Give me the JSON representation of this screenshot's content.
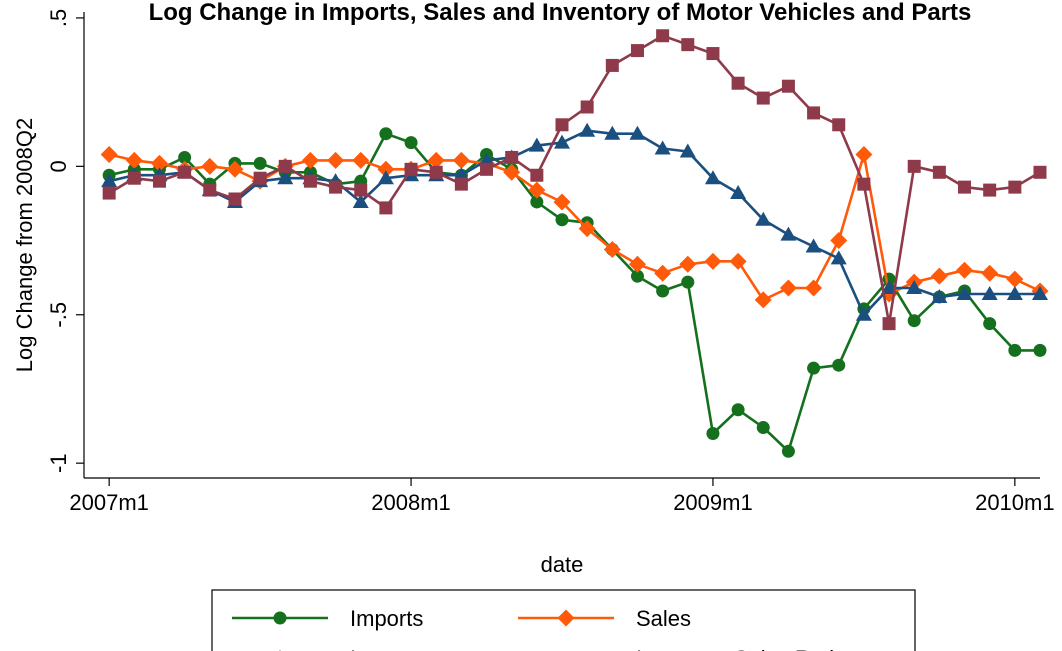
{
  "chart_data": {
    "type": "line",
    "title": "Log Change in Imports, Sales and Inventory of Motor Vehicles and Parts",
    "xlabel": "date",
    "ylabel": "Log Change from 2008Q2",
    "xlim": [
      "2006m12",
      "2010m2"
    ],
    "ylim": [
      -1.05,
      0.52
    ],
    "x_ticks": [
      {
        "value": "2007m1",
        "label": "2007m1"
      },
      {
        "value": "2008m1",
        "label": "2008m1"
      },
      {
        "value": "2009m1",
        "label": "2009m1"
      },
      {
        "value": "2010m1",
        "label": "2010m1"
      }
    ],
    "y_ticks": [
      {
        "value": 0.5,
        "label": ".5"
      },
      {
        "value": 0,
        "label": "0"
      },
      {
        "value": -0.5,
        "label": "-.5"
      },
      {
        "value": -1,
        "label": "-1"
      }
    ],
    "grid": false,
    "legend_position": "bottom",
    "x": [
      "2007m1",
      "2007m2",
      "2007m3",
      "2007m4",
      "2007m5",
      "2007m6",
      "2007m7",
      "2007m8",
      "2007m9",
      "2007m10",
      "2007m11",
      "2007m12",
      "2008m1",
      "2008m2",
      "2008m3",
      "2008m4",
      "2008m5",
      "2008m6",
      "2008m7",
      "2008m8",
      "2008m9",
      "2008m10",
      "2008m11",
      "2008m12",
      "2009m1",
      "2009m2",
      "2009m3",
      "2009m4",
      "2009m5",
      "2009m6",
      "2009m7",
      "2009m8",
      "2009m9",
      "2009m10",
      "2009m11",
      "2009m12",
      "2010m1",
      "2010m2"
    ],
    "series": [
      {
        "name": "Imports",
        "color": "#15701e",
        "marker": "circle",
        "values": [
          -0.03,
          -0.01,
          -0.01,
          0.03,
          -0.06,
          0.01,
          0.01,
          -0.02,
          -0.02,
          -0.06,
          -0.05,
          0.11,
          0.08,
          -0.02,
          -0.03,
          0.04,
          -0.01,
          -0.12,
          -0.18,
          -0.19,
          -0.28,
          -0.37,
          -0.42,
          -0.39,
          -0.9,
          -0.82,
          -0.88,
          -0.96,
          -0.68,
          -0.67,
          -0.48,
          -0.38,
          -0.52,
          -0.44,
          -0.42,
          -0.53,
          -0.62,
          -0.62
        ]
      },
      {
        "name": "Sales",
        "color": "#ff5a0a",
        "marker": "diamond",
        "values": [
          0.04,
          0.02,
          0.01,
          -0.01,
          0.0,
          -0.01,
          -0.05,
          0.0,
          0.02,
          0.02,
          0.02,
          -0.01,
          -0.01,
          0.02,
          0.02,
          0.01,
          -0.02,
          -0.08,
          -0.12,
          -0.21,
          -0.28,
          -0.33,
          -0.36,
          -0.33,
          -0.32,
          -0.32,
          -0.45,
          -0.41,
          -0.41,
          -0.25,
          0.04,
          -0.43,
          -0.39,
          -0.37,
          -0.35,
          -0.36,
          -0.38,
          -0.42
        ]
      },
      {
        "name": "Inventory",
        "color": "#1b4f7f",
        "marker": "triangle",
        "values": [
          -0.05,
          -0.03,
          -0.03,
          -0.02,
          -0.08,
          -0.12,
          -0.05,
          -0.04,
          -0.04,
          -0.05,
          -0.12,
          -0.04,
          -0.03,
          -0.03,
          -0.03,
          0.02,
          0.03,
          0.07,
          0.08,
          0.12,
          0.11,
          0.11,
          0.06,
          0.05,
          -0.04,
          -0.09,
          -0.18,
          -0.23,
          -0.27,
          -0.31,
          -0.5,
          -0.41,
          -0.41,
          -0.44,
          -0.43,
          -0.43,
          -0.43,
          -0.43
        ]
      },
      {
        "name": "Inventory-Sales Ratio",
        "color": "#8e3a4a",
        "marker": "square",
        "values": [
          -0.09,
          -0.04,
          -0.05,
          -0.02,
          -0.08,
          -0.11,
          -0.04,
          0.0,
          -0.05,
          -0.07,
          -0.08,
          -0.14,
          -0.01,
          -0.02,
          -0.06,
          -0.01,
          0.03,
          -0.03,
          0.14,
          0.2,
          0.34,
          0.39,
          0.44,
          0.41,
          0.38,
          0.28,
          0.23,
          0.27,
          0.18,
          0.14,
          -0.06,
          -0.53,
          0.0,
          -0.02,
          -0.07,
          -0.08,
          -0.07,
          -0.02
        ]
      }
    ]
  }
}
